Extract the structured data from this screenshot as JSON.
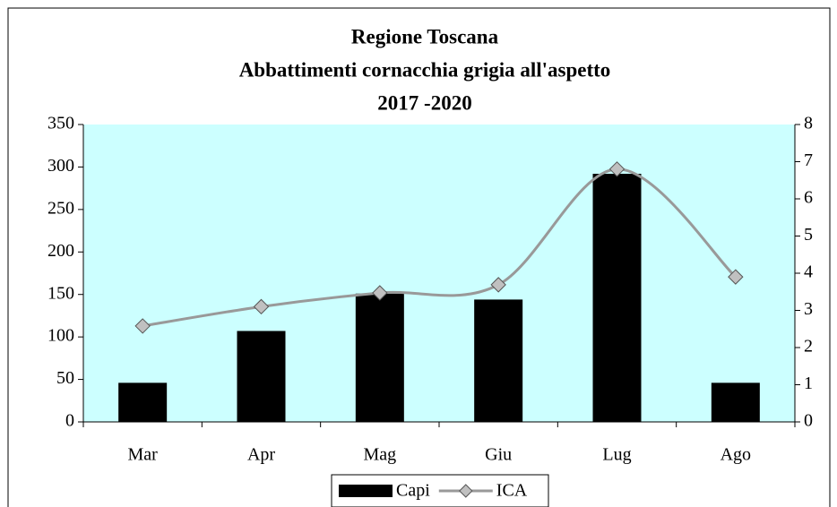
{
  "chart_data": {
    "type": "bar",
    "title": "Regione Toscana",
    "subtitle": [
      "Abbattimenti cornacchia grigia all'aspetto",
      "2017 -2020"
    ],
    "categories": [
      "Mar",
      "Apr",
      "Mag",
      "Giu",
      "Lug",
      "Ago"
    ],
    "series": [
      {
        "name": "Capi",
        "type": "bar",
        "color": "#000000",
        "values": [
          46,
          107,
          151,
          144,
          292,
          46
        ]
      },
      {
        "name": "ICA",
        "type": "line",
        "axis": "y2",
        "color": "#999999",
        "marker_color": "#c0c0c0",
        "values": [
          2.58,
          3.1,
          3.47,
          3.69,
          6.8,
          3.9
        ]
      }
    ],
    "ylim": [
      0,
      350
    ],
    "yticks": [
      0,
      50,
      100,
      150,
      200,
      250,
      300,
      350
    ],
    "y2lim": [
      0,
      8
    ],
    "y2ticks": [
      0,
      1,
      2,
      3,
      4,
      5,
      6,
      7,
      8
    ],
    "plot_background": "#ccffff",
    "legend": "bottom"
  }
}
